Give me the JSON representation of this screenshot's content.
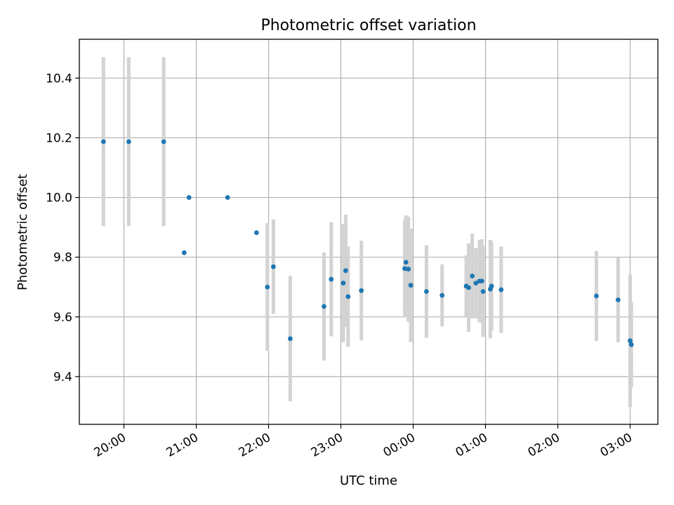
{
  "chart_data": {
    "type": "scatter",
    "title": "Photometric offset variation",
    "xlabel": "UTC time",
    "ylabel": "Photometric offset",
    "x_ticks": [
      "20:00",
      "21:00",
      "22:00",
      "23:00",
      "00:00",
      "01:00",
      "02:00",
      "03:00"
    ],
    "y_ticks": [
      "9.4",
      "9.6",
      "9.8",
      "10.0",
      "10.2",
      "10.4"
    ],
    "xlim": [
      "19:23",
      "03:23"
    ],
    "ylim": [
      9.24,
      10.53
    ],
    "grid": true,
    "colors": {
      "point": "#1f77b4",
      "errorbar": "#d3d3d3",
      "grid": "#b0b0b0"
    },
    "points": [
      {
        "x": "19:43",
        "y": 10.187,
        "err": 0.283
      },
      {
        "x": "20:04",
        "y": 10.187,
        "err": 0.283
      },
      {
        "x": "20:33",
        "y": 10.187,
        "err": 0.283
      },
      {
        "x": "20:50",
        "y": 9.815,
        "err": 0.0
      },
      {
        "x": "20:54",
        "y": 10.0,
        "err": 0.0
      },
      {
        "x": "21:26",
        "y": 10.0,
        "err": 0.0
      },
      {
        "x": "21:50",
        "y": 9.882,
        "err": 0.0
      },
      {
        "x": "21:59",
        "y": 9.7,
        "err": 0.214
      },
      {
        "x": "22:04",
        "y": 9.768,
        "err": 0.158
      },
      {
        "x": "22:18",
        "y": 9.527,
        "err": 0.21
      },
      {
        "x": "22:46",
        "y": 9.635,
        "err": 0.181
      },
      {
        "x": "22:52",
        "y": 9.726,
        "err": 0.191
      },
      {
        "x": "23:02",
        "y": 9.713,
        "err": 0.198
      },
      {
        "x": "23:04",
        "y": 9.755,
        "err": 0.188
      },
      {
        "x": "23:06",
        "y": 9.668,
        "err": 0.168
      },
      {
        "x": "23:17",
        "y": 9.688,
        "err": 0.167
      },
      {
        "x": "23:53",
        "y": 9.762,
        "err": 0.164
      },
      {
        "x": "23:54",
        "y": 9.783,
        "err": 0.157
      },
      {
        "x": "23:56",
        "y": 9.76,
        "err": 0.176
      },
      {
        "x": "23:58",
        "y": 9.706,
        "err": 0.19
      },
      {
        "x": "00:11",
        "y": 9.685,
        "err": 0.155
      },
      {
        "x": "00:24",
        "y": 9.672,
        "err": 0.104
      },
      {
        "x": "00:44",
        "y": 9.703,
        "err": 0.103
      },
      {
        "x": "00:46",
        "y": 9.698,
        "err": 0.148
      },
      {
        "x": "00:49",
        "y": 9.737,
        "err": 0.142
      },
      {
        "x": "00:52",
        "y": 9.713,
        "err": 0.118
      },
      {
        "x": "00:55",
        "y": 9.72,
        "err": 0.138
      },
      {
        "x": "00:57",
        "y": 9.72,
        "err": 0.14
      },
      {
        "x": "00:58",
        "y": 9.685,
        "err": 0.152
      },
      {
        "x": "01:04",
        "y": 9.693,
        "err": 0.165
      },
      {
        "x": "01:05",
        "y": 9.703,
        "err": 0.149
      },
      {
        "x": "01:13",
        "y": 9.691,
        "err": 0.145
      },
      {
        "x": "02:32",
        "y": 9.67,
        "err": 0.151
      },
      {
        "x": "02:50",
        "y": 9.657,
        "err": 0.142
      },
      {
        "x": "03:00",
        "y": 9.52,
        "err": 0.222
      },
      {
        "x": "03:01",
        "y": 9.507,
        "err": 0.143
      }
    ]
  }
}
